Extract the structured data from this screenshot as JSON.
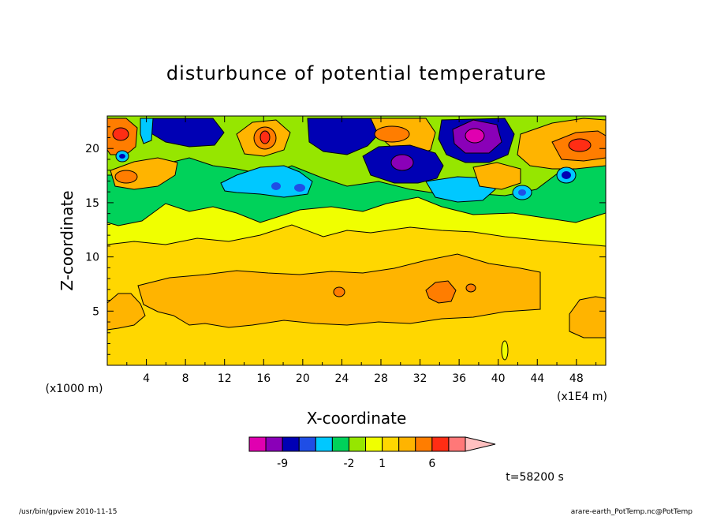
{
  "chart_data": {
    "type": "heatmap",
    "title": "disturbunce of potential temperature",
    "xlabel": "X-coordinate",
    "ylabel": "Z-coordinate",
    "x_unit_left": "(x1000 m)",
    "x_unit_right": "(x1E4 m)",
    "xlim": [
      0,
      51
    ],
    "ylim": [
      0,
      23
    ],
    "x_ticks": [
      4,
      8,
      12,
      16,
      20,
      24,
      28,
      32,
      36,
      40,
      44,
      48
    ],
    "y_ticks": [
      5,
      10,
      15,
      20
    ],
    "colorbar": {
      "colors": [
        "#e000b0",
        "#8a00b8",
        "#0000b4",
        "#1f4ee6",
        "#00c8ff",
        "#00d25a",
        "#96e600",
        "#f0ff00",
        "#ffd700",
        "#ffb400",
        "#ff7d00",
        "#ff2d14",
        "#ff7878",
        "#ffc0c0"
      ],
      "tick_labels": [
        {
          "label": "-9",
          "after_index": 1
        },
        {
          "label": "-2",
          "after_index": 5
        },
        {
          "label": "1",
          "after_index": 7
        },
        {
          "label": "6",
          "after_index": 10
        }
      ]
    },
    "grid": false,
    "time_label": "t=58200 s"
  },
  "footer": {
    "left": "/usr/bin/gpview  2010-11-15",
    "right": "arare-earth_PotTemp.nc@PotTemp"
  }
}
